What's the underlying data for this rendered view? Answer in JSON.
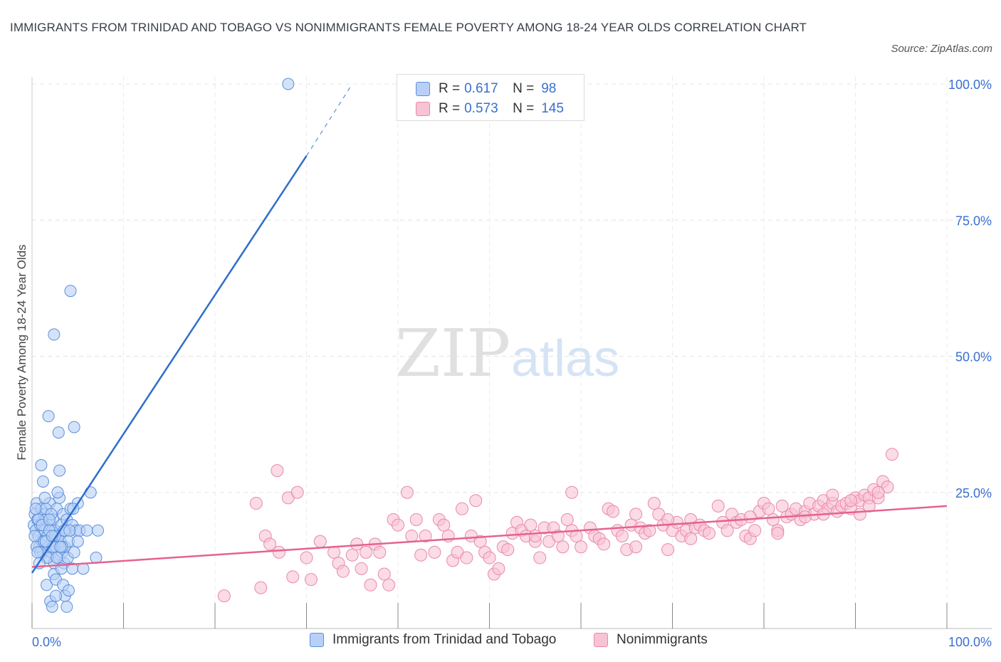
{
  "title": "IMMIGRANTS FROM TRINIDAD AND TOBAGO VS NONIMMIGRANTS FEMALE POVERTY AMONG 18-24 YEAR OLDS CORRELATION CHART",
  "source": "Source: ZipAtlas.com",
  "watermark": {
    "zip": "ZIP",
    "atlas": "atlas"
  },
  "legend": {
    "r_label": "R =",
    "n_label": "N =",
    "rows": [
      {
        "r": "0.617",
        "n": "98"
      },
      {
        "r": "0.573",
        "n": "145"
      }
    ]
  },
  "colors": {
    "blue_fill": "#b8d0f7",
    "blue_stroke": "#5b8fdb",
    "blue_line": "#2f6ecb",
    "pink_fill": "#f8c3d4",
    "pink_stroke": "#e88aa9",
    "pink_line": "#e5638e",
    "axis_text": "#3a6fd0"
  },
  "chart_data": {
    "type": "scatter",
    "title": "IMMIGRANTS FROM TRINIDAD AND TOBAGO VS NONIMMIGRANTS FEMALE POVERTY AMONG 18-24 YEAR OLDS CORRELATION CHART",
    "xlabel": "",
    "ylabel": "Female Poverty Among 18-24 Year Olds",
    "xlim": [
      0,
      100
    ],
    "ylim": [
      0,
      100
    ],
    "x_tick_labels": [
      "0.0%",
      "100.0%"
    ],
    "y_tick_labels": [
      "25.0%",
      "50.0%",
      "75.0%",
      "100.0%"
    ],
    "y_ticks": [
      25,
      50,
      75,
      100
    ],
    "grid": true,
    "legend_position": "bottom-center",
    "series": [
      {
        "name": "Immigrants from Trinidad and Tobago",
        "color": "#5b8fdb",
        "trend": {
          "x": [
            0,
            30
          ],
          "y": [
            10.2,
            86.8
          ],
          "dashed_to": [
            35,
            100
          ]
        },
        "points": [
          [
            0.2,
            19
          ],
          [
            0.3,
            21
          ],
          [
            0.4,
            18
          ],
          [
            0.5,
            23
          ],
          [
            0.6,
            20
          ],
          [
            0.7,
            17
          ],
          [
            0.8,
            15
          ],
          [
            0.9,
            19
          ],
          [
            1.0,
            22
          ],
          [
            1.1,
            16
          ],
          [
            1.2,
            14
          ],
          [
            1.3,
            21
          ],
          [
            1.4,
            18
          ],
          [
            1.5,
            20
          ],
          [
            1.6,
            13
          ],
          [
            1.7,
            17
          ],
          [
            1.8,
            15
          ],
          [
            1.9,
            23
          ],
          [
            2.0,
            19
          ],
          [
            2.1,
            14
          ],
          [
            2.2,
            16
          ],
          [
            2.3,
            20
          ],
          [
            2.4,
            12
          ],
          [
            2.5,
            18
          ],
          [
            2.6,
            15
          ],
          [
            2.7,
            22
          ],
          [
            2.8,
            17
          ],
          [
            2.9,
            13
          ],
          [
            3.0,
            24
          ],
          [
            3.1,
            16
          ],
          [
            3.2,
            19
          ],
          [
            3.3,
            14
          ],
          [
            3.4,
            21
          ],
          [
            3.5,
            12
          ],
          [
            3.6,
            15
          ],
          [
            3.7,
            18
          ],
          [
            3.8,
            20
          ],
          [
            3.9,
            13
          ],
          [
            4.0,
            16
          ],
          [
            4.2,
            22
          ],
          [
            4.4,
            19
          ],
          [
            4.6,
            14
          ],
          [
            4.8,
            18
          ],
          [
            5.0,
            23
          ],
          [
            0.3,
            17
          ],
          [
            0.5,
            15
          ],
          [
            0.7,
            20
          ],
          [
            0.9,
            14
          ],
          [
            1.1,
            19
          ],
          [
            1.3,
            16
          ],
          [
            1.5,
            22
          ],
          [
            1.7,
            13
          ],
          [
            1.9,
            18
          ],
          [
            2.1,
            21
          ],
          [
            2.3,
            15
          ],
          [
            2.5,
            17
          ],
          [
            0.8,
            12
          ],
          [
            1.0,
            30
          ],
          [
            1.2,
            27
          ],
          [
            1.6,
            8
          ],
          [
            1.8,
            39
          ],
          [
            2.0,
            5
          ],
          [
            2.2,
            4
          ],
          [
            2.4,
            10
          ],
          [
            2.6,
            9
          ],
          [
            2.8,
            25
          ],
          [
            3.0,
            29
          ],
          [
            3.2,
            11
          ],
          [
            3.4,
            8
          ],
          [
            3.6,
            6
          ],
          [
            3.8,
            4
          ],
          [
            4.0,
            7
          ],
          [
            4.2,
            62
          ],
          [
            4.4,
            11
          ],
          [
            4.6,
            37
          ],
          [
            5.0,
            16
          ],
          [
            5.2,
            18
          ],
          [
            5.6,
            11
          ],
          [
            6.0,
            18
          ],
          [
            6.4,
            25
          ],
          [
            7.0,
            13
          ],
          [
            7.2,
            18
          ],
          [
            2.4,
            54
          ],
          [
            2.6,
            6
          ],
          [
            2.9,
            36
          ],
          [
            3.3,
            15
          ],
          [
            3.5,
            18
          ],
          [
            0.6,
            14
          ],
          [
            0.4,
            22
          ],
          [
            1.4,
            24
          ],
          [
            2.7,
            13
          ],
          [
            3.1,
            15
          ],
          [
            4.1,
            18
          ],
          [
            4.5,
            22
          ],
          [
            28.0,
            100
          ],
          [
            1.5,
            16
          ],
          [
            1.9,
            20
          ],
          [
            2.2,
            17
          ]
        ]
      },
      {
        "name": "Nonimmigrants",
        "color": "#e88aa9",
        "trend": {
          "x": [
            0,
            100
          ],
          "y": [
            11.3,
            22.5
          ]
        },
        "points": [
          [
            21,
            6
          ],
          [
            24.5,
            23
          ],
          [
            25,
            7.5
          ],
          [
            25.5,
            17
          ],
          [
            26,
            15.5
          ],
          [
            26.8,
            29
          ],
          [
            27,
            14
          ],
          [
            28,
            24
          ],
          [
            28.5,
            9.5
          ],
          [
            29,
            25
          ],
          [
            30,
            13
          ],
          [
            30.5,
            9
          ],
          [
            31.5,
            16
          ],
          [
            33,
            14
          ],
          [
            33.5,
            12
          ],
          [
            34,
            10.5
          ],
          [
            35,
            13.5
          ],
          [
            35.5,
            15.5
          ],
          [
            36,
            11
          ],
          [
            36.5,
            14
          ],
          [
            37,
            8
          ],
          [
            37.5,
            15.5
          ],
          [
            38,
            14
          ],
          [
            38.5,
            10
          ],
          [
            39,
            8
          ],
          [
            39.5,
            20
          ],
          [
            40,
            19
          ],
          [
            41,
            25
          ],
          [
            41.5,
            17
          ],
          [
            42,
            20
          ],
          [
            42.5,
            13.5
          ],
          [
            43,
            17
          ],
          [
            44,
            14
          ],
          [
            44.5,
            20
          ],
          [
            45,
            19
          ],
          [
            45.5,
            17
          ],
          [
            46,
            12.5
          ],
          [
            46.5,
            14
          ],
          [
            47,
            22
          ],
          [
            47.5,
            13
          ],
          [
            48,
            17
          ],
          [
            48.5,
            23.5
          ],
          [
            49,
            16
          ],
          [
            49.5,
            14
          ],
          [
            50,
            13
          ],
          [
            50.5,
            10
          ],
          [
            51,
            11
          ],
          [
            51.5,
            15
          ],
          [
            52,
            14.5
          ],
          [
            52.5,
            17.5
          ],
          [
            53,
            19.5
          ],
          [
            53.5,
            18
          ],
          [
            54,
            17
          ],
          [
            54.5,
            19
          ],
          [
            55,
            16
          ],
          [
            55.5,
            13
          ],
          [
            56,
            18.5
          ],
          [
            56.5,
            16
          ],
          [
            57,
            18.5
          ],
          [
            57.5,
            17
          ],
          [
            58,
            15
          ],
          [
            59,
            25
          ],
          [
            59,
            18
          ],
          [
            59.5,
            17
          ],
          [
            60,
            15
          ],
          [
            61,
            18.5
          ],
          [
            61.5,
            17
          ],
          [
            62,
            16.5
          ],
          [
            62.5,
            15.5
          ],
          [
            63,
            22
          ],
          [
            63.5,
            21.5
          ],
          [
            64,
            18
          ],
          [
            64.5,
            17
          ],
          [
            65,
            14.5
          ],
          [
            65.5,
            19
          ],
          [
            66,
            15
          ],
          [
            66.5,
            18.5
          ],
          [
            67,
            17.5
          ],
          [
            67.5,
            18
          ],
          [
            68,
            23
          ],
          [
            68.5,
            21
          ],
          [
            69,
            19
          ],
          [
            69.5,
            14.5
          ],
          [
            70,
            18
          ],
          [
            70.5,
            19.5
          ],
          [
            71,
            17
          ],
          [
            71.5,
            18
          ],
          [
            72,
            20
          ],
          [
            72.5,
            18.5
          ],
          [
            73,
            19
          ],
          [
            73.5,
            18
          ],
          [
            74,
            17.5
          ],
          [
            75,
            22.5
          ],
          [
            75.5,
            19.5
          ],
          [
            76,
            18
          ],
          [
            76.5,
            21
          ],
          [
            77,
            19.5
          ],
          [
            77.5,
            20
          ],
          [
            78,
            17
          ],
          [
            78.5,
            16.5
          ],
          [
            79,
            18
          ],
          [
            79.5,
            21.5
          ],
          [
            80,
            23
          ],
          [
            80.5,
            22
          ],
          [
            81,
            20
          ],
          [
            81.5,
            18
          ],
          [
            82,
            22.5
          ],
          [
            82.5,
            20.5
          ],
          [
            83,
            21
          ],
          [
            83.5,
            22
          ],
          [
            84,
            20
          ],
          [
            84.5,
            21.5
          ],
          [
            85,
            23
          ],
          [
            85.5,
            21
          ],
          [
            86,
            22.5
          ],
          [
            86.5,
            23.5
          ],
          [
            87,
            22
          ],
          [
            87.5,
            23
          ],
          [
            88,
            21.5
          ],
          [
            88.5,
            22.5
          ],
          [
            89,
            23
          ],
          [
            89.5,
            22
          ],
          [
            90,
            24
          ],
          [
            90.5,
            23.5
          ],
          [
            91,
            24.5
          ],
          [
            91.5,
            24
          ],
          [
            92,
            25.5
          ],
          [
            92.5,
            24
          ],
          [
            93,
            27
          ],
          [
            93.5,
            26
          ],
          [
            94,
            32
          ],
          [
            69.5,
            20
          ],
          [
            72,
            16.5
          ],
          [
            58.5,
            20
          ],
          [
            55,
            17
          ],
          [
            66,
            21
          ],
          [
            78.5,
            20.5
          ],
          [
            81.5,
            17.5
          ],
          [
            84.5,
            20.5
          ],
          [
            86.5,
            21
          ],
          [
            87.5,
            24.5
          ],
          [
            89.5,
            23.5
          ],
          [
            90.5,
            21
          ],
          [
            91.5,
            22.5
          ],
          [
            92.5,
            25
          ]
        ]
      }
    ]
  }
}
